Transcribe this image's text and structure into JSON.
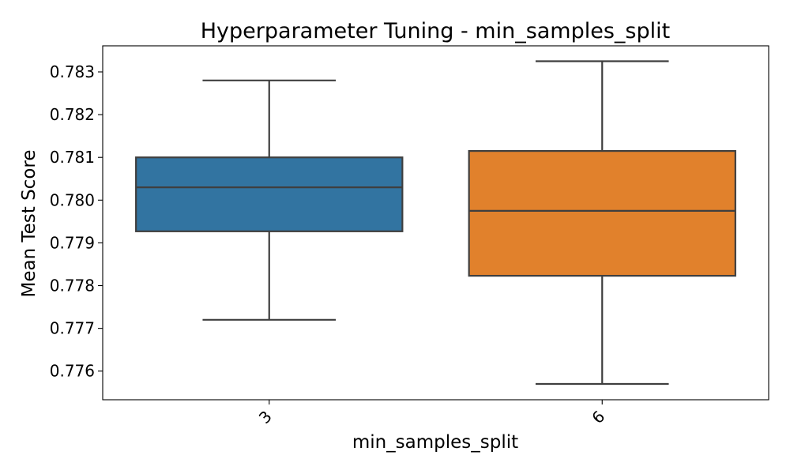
{
  "chart_data": {
    "type": "box",
    "title": "Hyperparameter Tuning - min_samples_split",
    "xlabel": "min_samples_split",
    "ylabel": "Mean Test Score",
    "categories": [
      "3",
      "6"
    ],
    "yticks": [
      "0.776",
      "0.777",
      "0.778",
      "0.779",
      "0.780",
      "0.781",
      "0.782",
      "0.783"
    ],
    "ylim": [
      0.77533,
      0.78361
    ],
    "grid": false,
    "x_tick_rotation_deg": -45,
    "boxes": [
      {
        "category": "3",
        "whisker_low": 0.7772,
        "q1": 0.77927,
        "median": 0.7803,
        "q3": 0.781,
        "whisker_high": 0.7828,
        "color": "#3274a1"
      },
      {
        "category": "6",
        "whisker_low": 0.7757,
        "q1": 0.77823,
        "median": 0.77975,
        "q3": 0.78115,
        "whisker_high": 0.78325,
        "color": "#e1812c"
      }
    ],
    "line_color": "#3f3f3f"
  }
}
